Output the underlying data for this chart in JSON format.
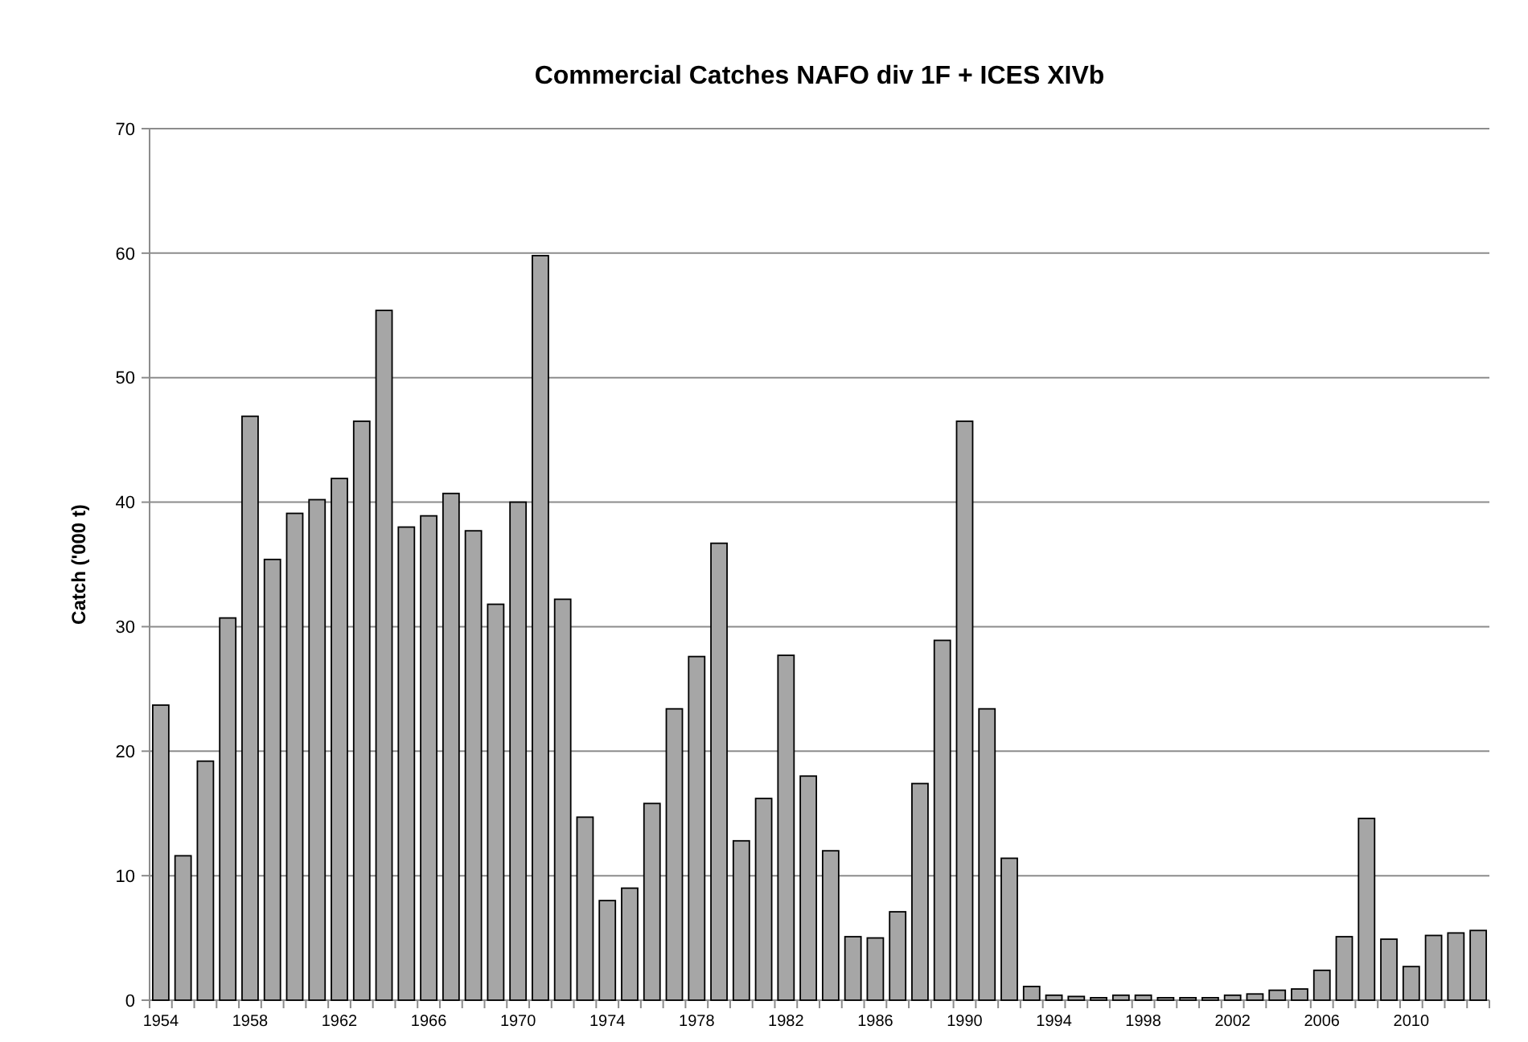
{
  "chart_data": {
    "type": "bar",
    "title": "Commercial Catches NAFO div 1F + ICES XIVb",
    "ylabel": "Catch ('000 t)",
    "categories": [
      "1954",
      null,
      null,
      null,
      "1958",
      null,
      null,
      null,
      "1962",
      null,
      null,
      null,
      "1966",
      null,
      null,
      null,
      "1970",
      null,
      null,
      null,
      "1974",
      null,
      null,
      null,
      "1978",
      null,
      null,
      null,
      "1982",
      null,
      null,
      null,
      "1986",
      null,
      null,
      null,
      "1990",
      null,
      null,
      null,
      "1994",
      null,
      null,
      null,
      "1998",
      null,
      null,
      null,
      "2002",
      null,
      null,
      null,
      "2006",
      null,
      null,
      null,
      "2010",
      null,
      null,
      null
    ],
    "values": [
      23.7,
      11.6,
      19.2,
      30.7,
      46.9,
      35.4,
      39.1,
      40.2,
      41.9,
      46.5,
      55.4,
      38.0,
      38.9,
      40.7,
      37.7,
      31.8,
      40.0,
      59.8,
      32.2,
      14.7,
      8.0,
      9.0,
      15.8,
      23.4,
      27.6,
      36.7,
      12.8,
      16.2,
      27.7,
      18.0,
      12.0,
      5.1,
      5.0,
      7.1,
      17.4,
      28.9,
      46.5,
      23.4,
      11.4,
      1.1,
      0.4,
      0.3,
      0.2,
      0.4,
      0.4,
      0.2,
      0.2,
      0.2,
      0.4,
      0.5,
      0.8,
      0.9,
      2.4,
      5.1,
      14.6,
      4.9,
      2.7,
      5.2,
      5.4,
      5.6
    ],
    "color": "#a6a6a6",
    "ylim": [
      0,
      70
    ],
    "yticks": [
      0,
      10,
      20,
      30,
      40,
      50,
      60,
      70
    ],
    "grid": "y"
  }
}
